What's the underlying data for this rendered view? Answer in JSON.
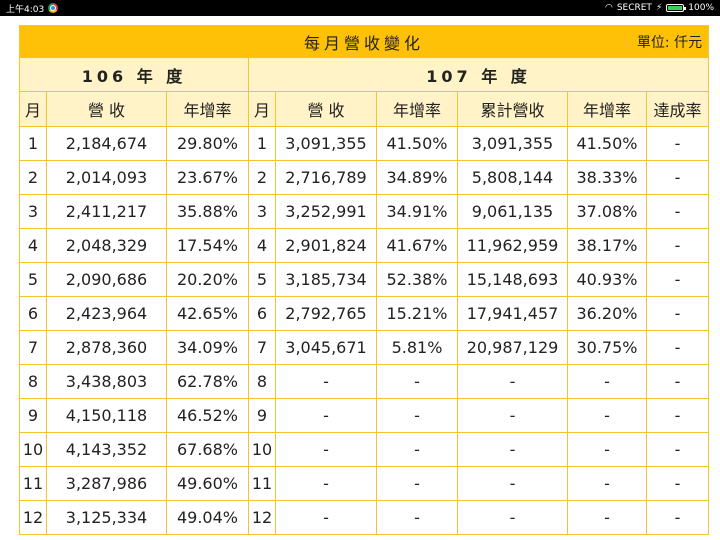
{
  "status_bar": {
    "time": "上午4:03",
    "network": "SECRET",
    "battery": "100%"
  },
  "table": {
    "title": "每月營收變化",
    "unit": "單位: 仟元",
    "year_106": "106 年 度",
    "year_107": "107 年 度",
    "headers_106": [
      "月",
      "營 收",
      "年增率"
    ],
    "headers_107": [
      "月",
      "營 收",
      "年增率",
      "累計營收",
      "年增率",
      "達成率"
    ],
    "rows": [
      {
        "m106": "1",
        "rev106": "2,184,674",
        "yoy106": "29.80%",
        "m107": "1",
        "rev107": "3,091,355",
        "yoy107": "41.50%",
        "cum": "3,091,355",
        "cumyoy": "41.50%",
        "ach": "-"
      },
      {
        "m106": "2",
        "rev106": "2,014,093",
        "yoy106": "23.67%",
        "m107": "2",
        "rev107": "2,716,789",
        "yoy107": "34.89%",
        "cum": "5,808,144",
        "cumyoy": "38.33%",
        "ach": "-"
      },
      {
        "m106": "3",
        "rev106": "2,411,217",
        "yoy106": "35.88%",
        "m107": "3",
        "rev107": "3,252,991",
        "yoy107": "34.91%",
        "cum": "9,061,135",
        "cumyoy": "37.08%",
        "ach": "-"
      },
      {
        "m106": "4",
        "rev106": "2,048,329",
        "yoy106": "17.54%",
        "m107": "4",
        "rev107": "2,901,824",
        "yoy107": "41.67%",
        "cum": "11,962,959",
        "cumyoy": "38.17%",
        "ach": "-"
      },
      {
        "m106": "5",
        "rev106": "2,090,686",
        "yoy106": "20.20%",
        "m107": "5",
        "rev107": "3,185,734",
        "yoy107": "52.38%",
        "cum": "15,148,693",
        "cumyoy": "40.93%",
        "ach": "-"
      },
      {
        "m106": "6",
        "rev106": "2,423,964",
        "yoy106": "42.65%",
        "m107": "6",
        "rev107": "2,792,765",
        "yoy107": "15.21%",
        "cum": "17,941,457",
        "cumyoy": "36.20%",
        "ach": "-"
      },
      {
        "m106": "7",
        "rev106": "2,878,360",
        "yoy106": "34.09%",
        "m107": "7",
        "rev107": "3,045,671",
        "yoy107": "5.81%",
        "cum": "20,987,129",
        "cumyoy": "30.75%",
        "ach": "-"
      },
      {
        "m106": "8",
        "rev106": "3,438,803",
        "yoy106": "62.78%",
        "m107": "8",
        "rev107": "-",
        "yoy107": "-",
        "cum": "-",
        "cumyoy": "-",
        "ach": "-"
      },
      {
        "m106": "9",
        "rev106": "4,150,118",
        "yoy106": "46.52%",
        "m107": "9",
        "rev107": "-",
        "yoy107": "-",
        "cum": "-",
        "cumyoy": "-",
        "ach": "-"
      },
      {
        "m106": "10",
        "rev106": "4,143,352",
        "yoy106": "67.68%",
        "m107": "10",
        "rev107": "-",
        "yoy107": "-",
        "cum": "-",
        "cumyoy": "-",
        "ach": "-"
      },
      {
        "m106": "11",
        "rev106": "3,287,986",
        "yoy106": "49.60%",
        "m107": "11",
        "rev107": "-",
        "yoy107": "-",
        "cum": "-",
        "cumyoy": "-",
        "ach": "-"
      },
      {
        "m106": "12",
        "rev106": "3,125,334",
        "yoy106": "49.04%",
        "m107": "12",
        "rev107": "-",
        "yoy107": "-",
        "cum": "-",
        "cumyoy": "-",
        "ach": "-"
      }
    ]
  }
}
